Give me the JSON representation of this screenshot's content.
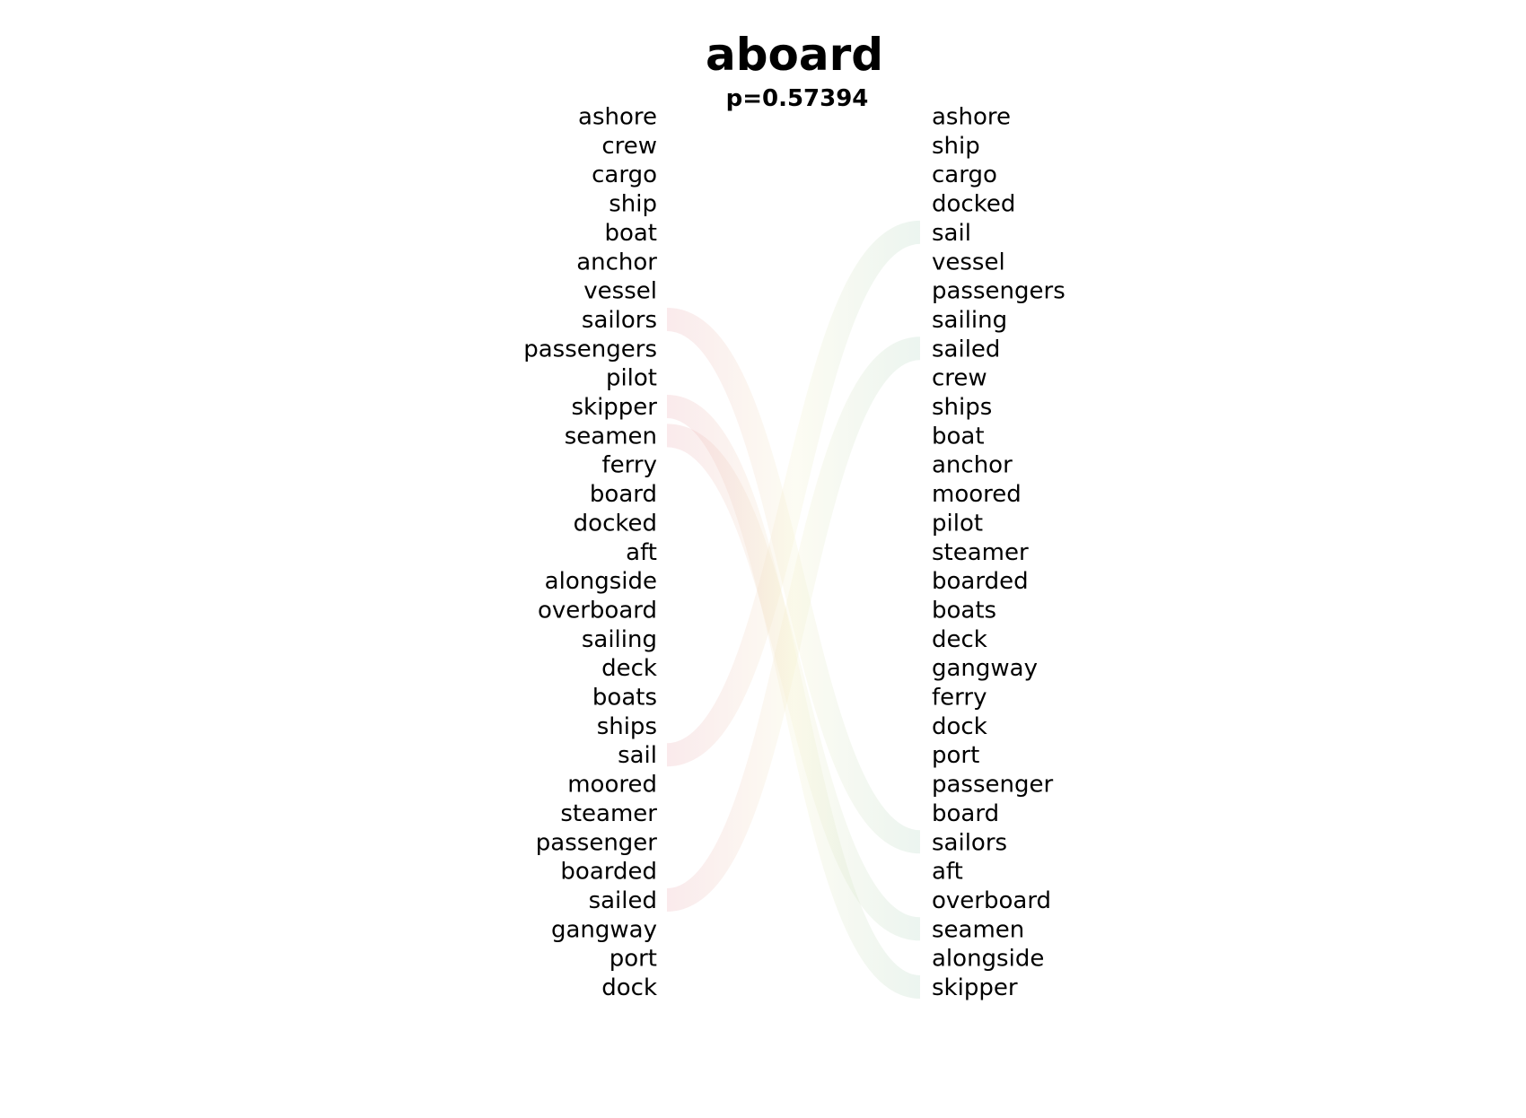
{
  "chart_data": {
    "type": "bump",
    "title": "aboard",
    "subtitle": "p=0.57394",
    "left_ranking": [
      "ashore",
      "crew",
      "cargo",
      "ship",
      "boat",
      "anchor",
      "vessel",
      "sailors",
      "passengers",
      "pilot",
      "skipper",
      "seamen",
      "ferry",
      "board",
      "docked",
      "aft",
      "alongside",
      "overboard",
      "sailing",
      "deck",
      "boats",
      "ships",
      "sail",
      "moored",
      "steamer",
      "passenger",
      "boarded",
      "sailed",
      "gangway",
      "port",
      "dock"
    ],
    "right_ranking": [
      "ashore",
      "ship",
      "cargo",
      "docked",
      "sail",
      "vessel",
      "passengers",
      "sailing",
      "sailed",
      "crew",
      "ships",
      "boat",
      "anchor",
      "moored",
      "pilot",
      "steamer",
      "boarded",
      "boats",
      "deck",
      "gangway",
      "ferry",
      "dock",
      "port",
      "passenger",
      "board",
      "sailors",
      "aft",
      "overboard",
      "seamen",
      "alongside",
      "skipper"
    ],
    "highlighted_links": [
      {
        "word": "sailors",
        "left_rank": 8,
        "right_rank": 26,
        "direction": "down"
      },
      {
        "word": "skipper",
        "left_rank": 11,
        "right_rank": 31,
        "direction": "down"
      },
      {
        "word": "seamen",
        "left_rank": 12,
        "right_rank": 29,
        "direction": "down"
      },
      {
        "word": "sail",
        "left_rank": 23,
        "right_rank": 5,
        "direction": "up"
      },
      {
        "word": "sailed",
        "left_rank": 28,
        "right_rank": 9,
        "direction": "up"
      }
    ],
    "colors": {
      "down_start": "#e8a0a8",
      "up_start": "#a8d0b8",
      "mid": "#f4f0c8",
      "text": "#000000"
    }
  }
}
